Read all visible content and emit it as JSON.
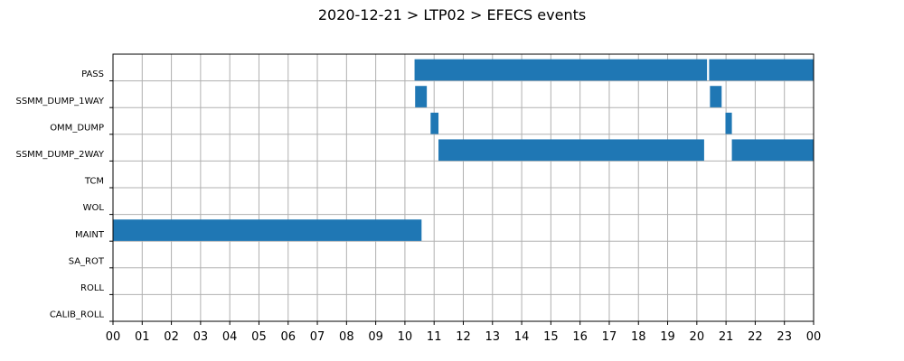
{
  "chart_data": {
    "type": "timeline",
    "title": "2020-12-21 > LTP02 > EFECS events",
    "xlabel": "",
    "ylabel": "",
    "x_unit": "hour",
    "xlim": [
      0,
      24
    ],
    "grid": true,
    "bar_color": "#1f77b4",
    "x_tick_labels": [
      "00",
      "01",
      "02",
      "03",
      "04",
      "05",
      "06",
      "07",
      "08",
      "09",
      "10",
      "11",
      "12",
      "13",
      "14",
      "15",
      "16",
      "17",
      "18",
      "19",
      "20",
      "21",
      "22",
      "23",
      "00"
    ],
    "categories": [
      "PASS",
      "SSMM_DUMP_1WAY",
      "OMM_DUMP",
      "SSMM_DUMP_2WAY",
      "TCM",
      "WOL",
      "MAINT",
      "SA_ROT",
      "ROLL",
      "CALIB_ROLL"
    ],
    "events": [
      {
        "category": "PASS",
        "start": 10.33,
        "end": 20.35
      },
      {
        "category": "PASS",
        "start": 20.42,
        "end": 24.0
      },
      {
        "category": "SSMM_DUMP_1WAY",
        "start": 10.35,
        "end": 10.75
      },
      {
        "category": "SSMM_DUMP_1WAY",
        "start": 20.45,
        "end": 20.85
      },
      {
        "category": "OMM_DUMP",
        "start": 10.88,
        "end": 11.15
      },
      {
        "category": "OMM_DUMP",
        "start": 20.98,
        "end": 21.2
      },
      {
        "category": "SSMM_DUMP_2WAY",
        "start": 11.15,
        "end": 20.25
      },
      {
        "category": "SSMM_DUMP_2WAY",
        "start": 21.2,
        "end": 24.0
      },
      {
        "category": "MAINT",
        "start": 0.0,
        "end": 10.57
      }
    ]
  }
}
